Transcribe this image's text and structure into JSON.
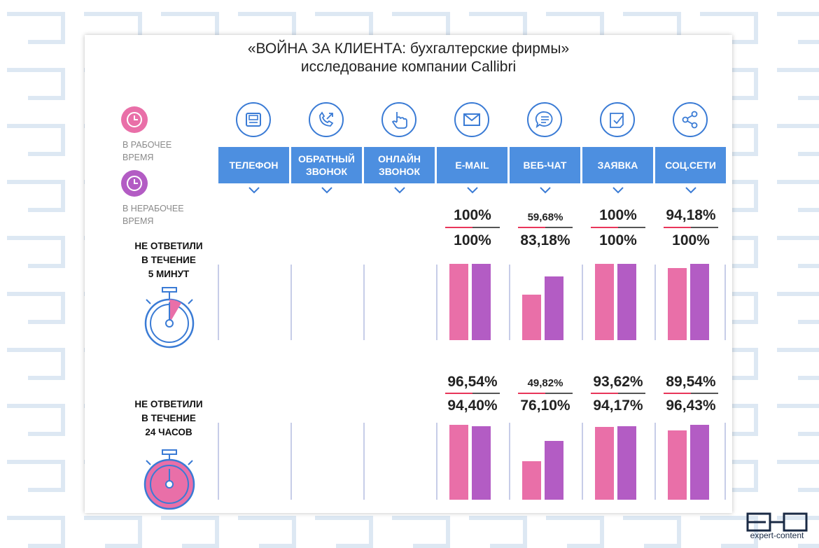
{
  "title_line1": "«ВОЙНА ЗА КЛИЕНТА: бухгалтерские фирмы»",
  "title_line2": "исследование компании Callibri",
  "legend": {
    "work_label_1": "В РАБОЧЕЕ",
    "work_label_2": "ВРЕМЯ",
    "offwork_label_1": "В НЕРАБОЧЕЕ",
    "offwork_label_2": "ВРЕМЯ",
    "work_color": "#e96fa8",
    "offwork_color": "#b35cc4"
  },
  "channels": [
    {
      "line1": "ТЕЛЕФОН",
      "line2": "",
      "icon": "phone-fax-icon"
    },
    {
      "line1": "ОБРАТНЫЙ",
      "line2": "ЗВОНОК",
      "icon": "callback-phone-icon"
    },
    {
      "line1": "ОНЛАЙН",
      "line2": "ЗВОНОК",
      "icon": "touch-hand-icon"
    },
    {
      "line1": "E-MAIL",
      "line2": "",
      "icon": "envelope-icon"
    },
    {
      "line1": "ВЕБ-ЧАТ",
      "line2": "",
      "icon": "chat-bubble-icon"
    },
    {
      "line1": "ЗАЯВКА",
      "line2": "",
      "icon": "form-check-icon"
    },
    {
      "line1": "СОЦ.СЕТИ",
      "line2": "",
      "icon": "share-icon"
    }
  ],
  "sections": [
    {
      "line1": "НЕ ОТВЕТИЛИ",
      "line2": "В ТЕЧЕНИЕ",
      "line3": "5 МИНУТ"
    },
    {
      "line1": "НЕ ОТВЕТИЛИ",
      "line2": "В ТЕЧЕНИЕ",
      "line3": "24 ЧАСОВ"
    }
  ],
  "labels": {
    "s0": [
      {
        "work": "100%",
        "offwork": "100%"
      },
      {
        "work": "59,68%",
        "offwork": "83,18%"
      },
      {
        "work": "100%",
        "offwork": "100%"
      },
      {
        "work": "94,18%",
        "offwork": "100%"
      }
    ],
    "s1": [
      {
        "work": "96,54%",
        "offwork": "94,40%"
      },
      {
        "work": "49,82%",
        "offwork": "76,10%"
      },
      {
        "work": "93,62%",
        "offwork": "94,17%"
      },
      {
        "work": "89,54%",
        "offwork": "96,43%"
      }
    ]
  },
  "chart_data": {
    "type": "bar",
    "title": "«ВОЙНА ЗА КЛИЕНТА: бухгалтерские фирмы»",
    "subtitle": "исследование компании Callibri",
    "categories": [
      "E-MAIL",
      "ВЕБ-ЧАТ",
      "ЗАЯВКА",
      "СОЦ.СЕТИ"
    ],
    "ylim": [
      0,
      100
    ],
    "panels": [
      {
        "name": "НЕ ОТВЕТИЛИ В ТЕЧЕНИЕ 5 МИНУТ",
        "series": [
          {
            "name": "В РАБОЧЕЕ ВРЕМЯ",
            "values": [
              100,
              59.68,
              100,
              94.18
            ]
          },
          {
            "name": "В НЕРАБОЧЕЕ ВРЕМЯ",
            "values": [
              100,
              83.18,
              100,
              100
            ]
          }
        ]
      },
      {
        "name": "НЕ ОТВЕТИЛИ В ТЕЧЕНИЕ 24 ЧАСОВ",
        "series": [
          {
            "name": "В РАБОЧЕЕ ВРЕМЯ",
            "values": [
              96.54,
              49.82,
              93.62,
              89.54
            ]
          },
          {
            "name": "В НЕРАБОЧЕЕ ВРЕМЯ",
            "values": [
              94.4,
              76.1,
              94.17,
              96.43
            ]
          }
        ]
      }
    ]
  },
  "logo_text": "expert-content",
  "colors": {
    "accent_blue": "#4d8fe0",
    "icon_blue": "#3a7bd5",
    "separator_red": "#e8365a",
    "separator_dark": "#555555",
    "column_line": "#c7cde8",
    "bg_pattern": "#dde8f3"
  }
}
